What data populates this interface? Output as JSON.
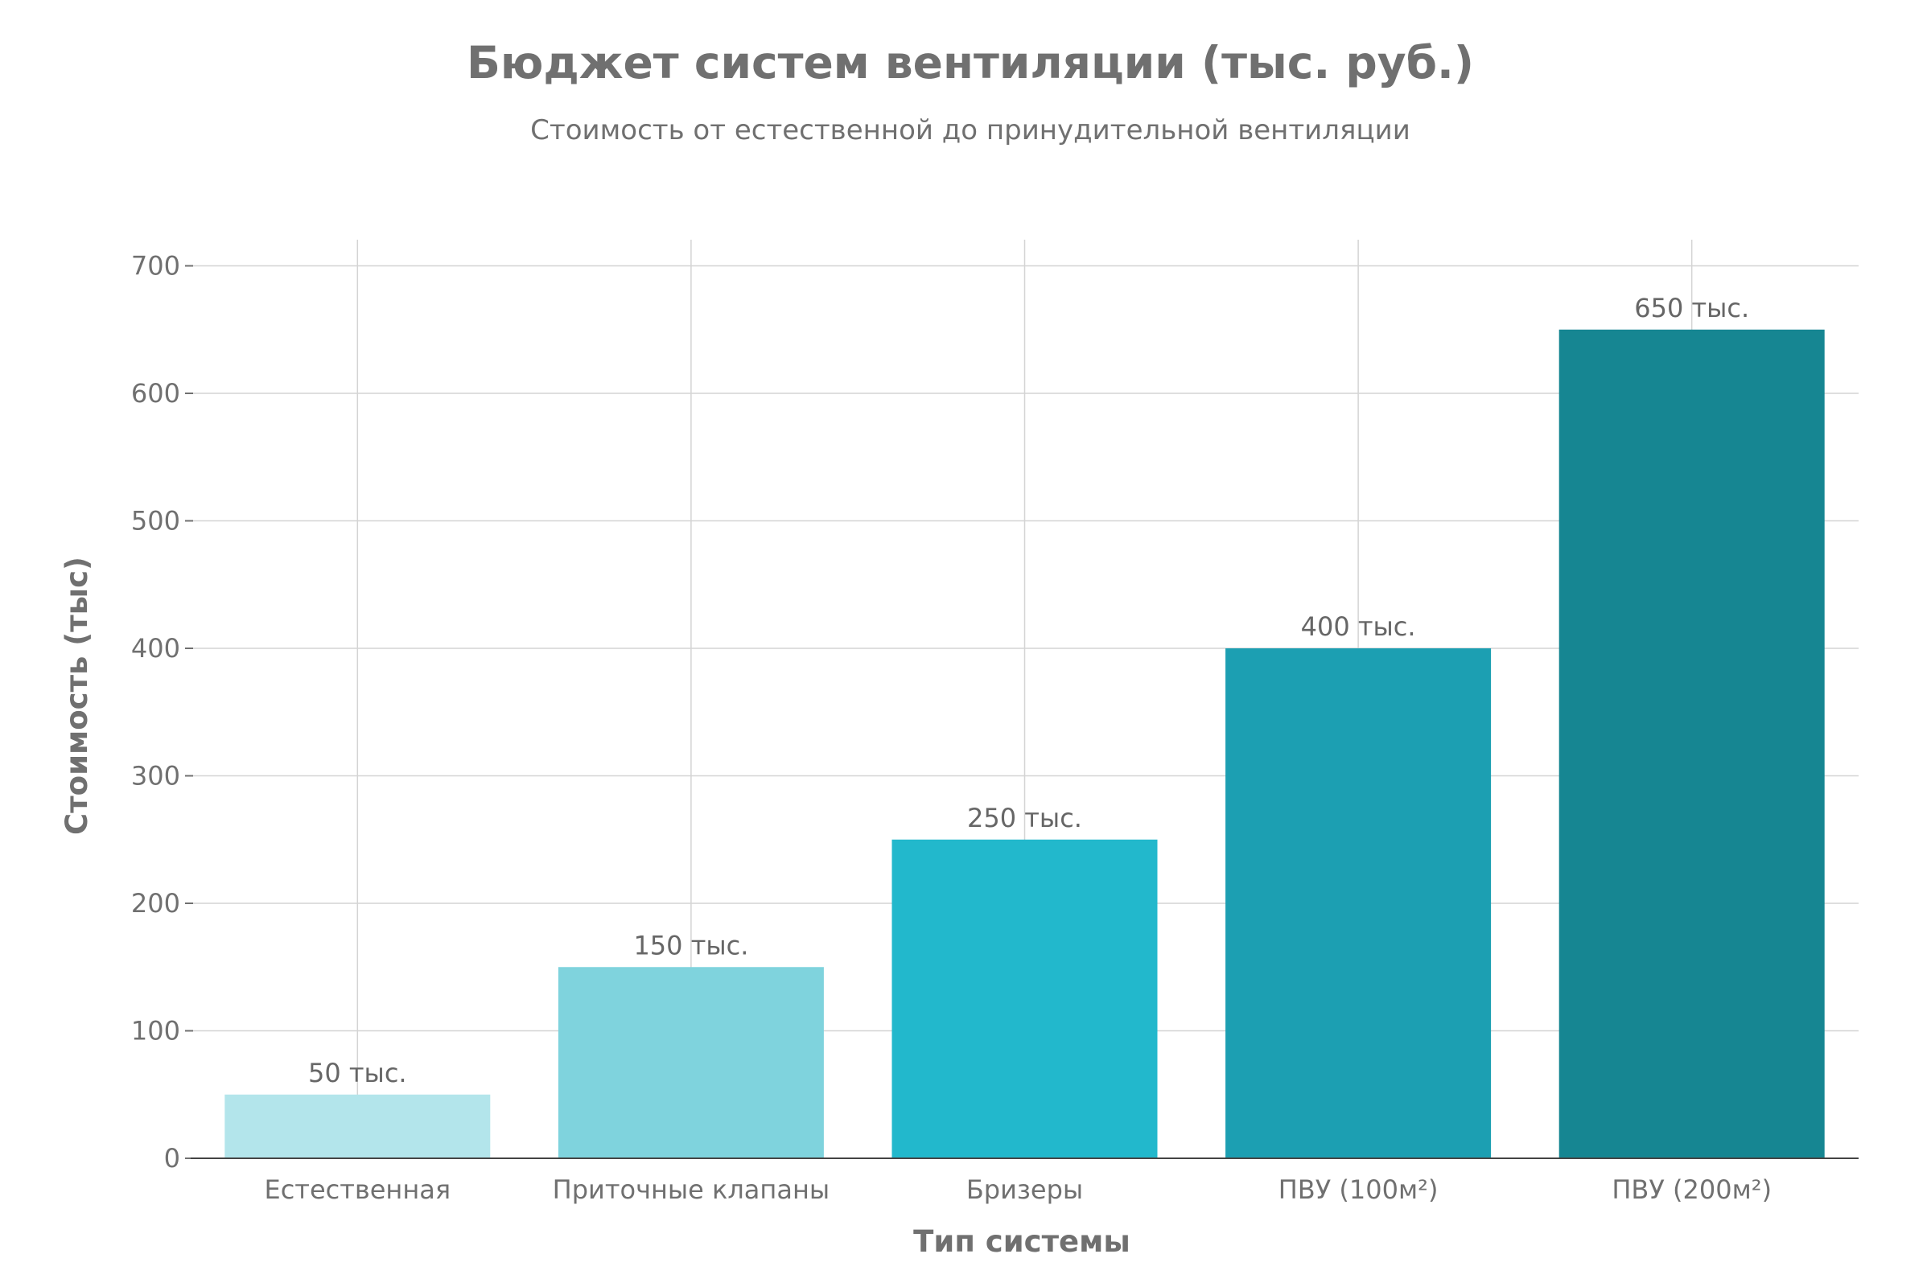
{
  "chart_data": {
    "type": "bar",
    "title": "Бюджет систем вентиляции (тыс. руб.)",
    "subtitle": "Стоимость от естественной до принудительной вентиляции",
    "xlabel": "Тип системы",
    "ylabel": "Стоимость (тыс)",
    "categories": [
      "Естественная",
      "Приточные клапаны",
      "Бризеры",
      "ПВУ (100м²)",
      "ПВУ (200м²)"
    ],
    "values": [
      50,
      150,
      250,
      400,
      650
    ],
    "data_labels": [
      "50 тыс.",
      "150 тыс.",
      "250 тыс.",
      "400 тыс.",
      "650 тыс."
    ],
    "colors": [
      "#b3e5eb",
      "#7fd3dd",
      "#22b8cc",
      "#1c9fb2",
      "#168692"
    ],
    "ylim": [
      0,
      700
    ],
    "yticks": [
      "0",
      "100",
      "200",
      "300",
      "400",
      "500",
      "600",
      "700"
    ],
    "grid": true
  }
}
